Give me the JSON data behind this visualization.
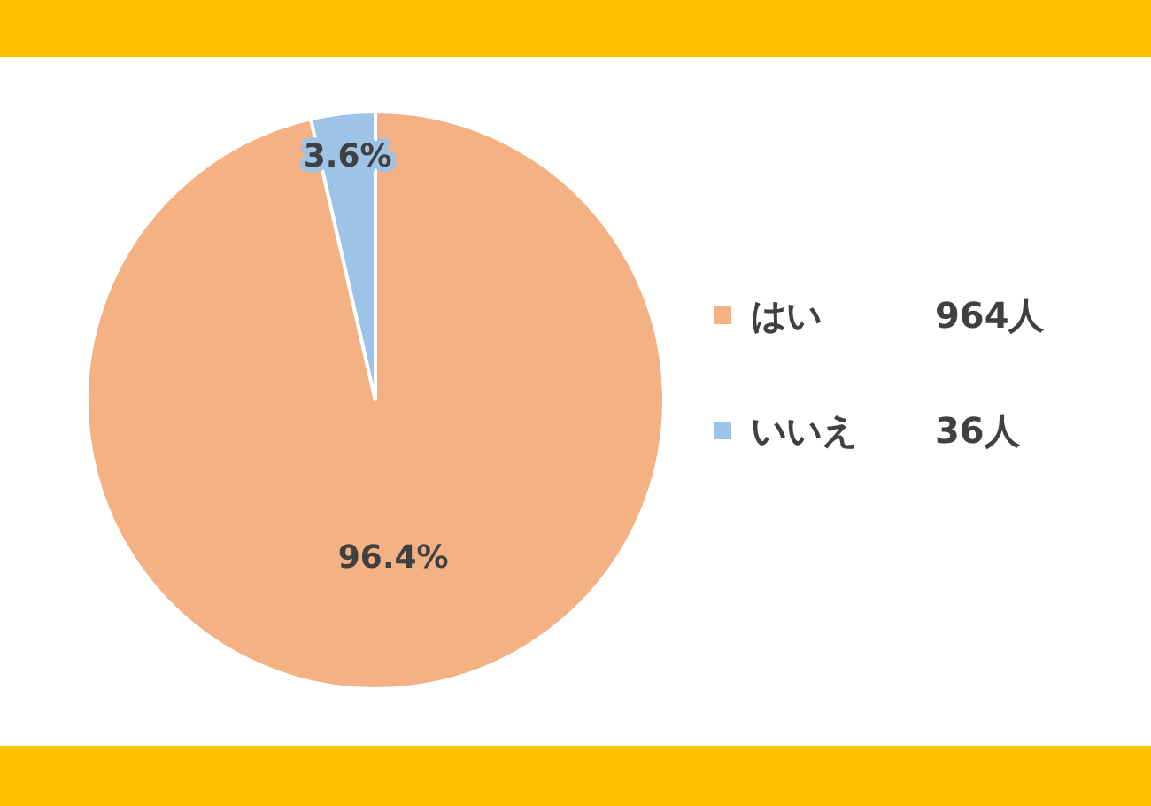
{
  "chart_data": {
    "type": "pie",
    "categories": [
      "はい",
      "いいえ"
    ],
    "values": [
      96.4,
      3.6
    ],
    "colors": [
      "#f4b183",
      "#9dc3e6"
    ],
    "value_labels": [
      "96.4%",
      "3.6%"
    ],
    "annotations": [
      "964人",
      "36人"
    ],
    "legend": "right"
  }
}
